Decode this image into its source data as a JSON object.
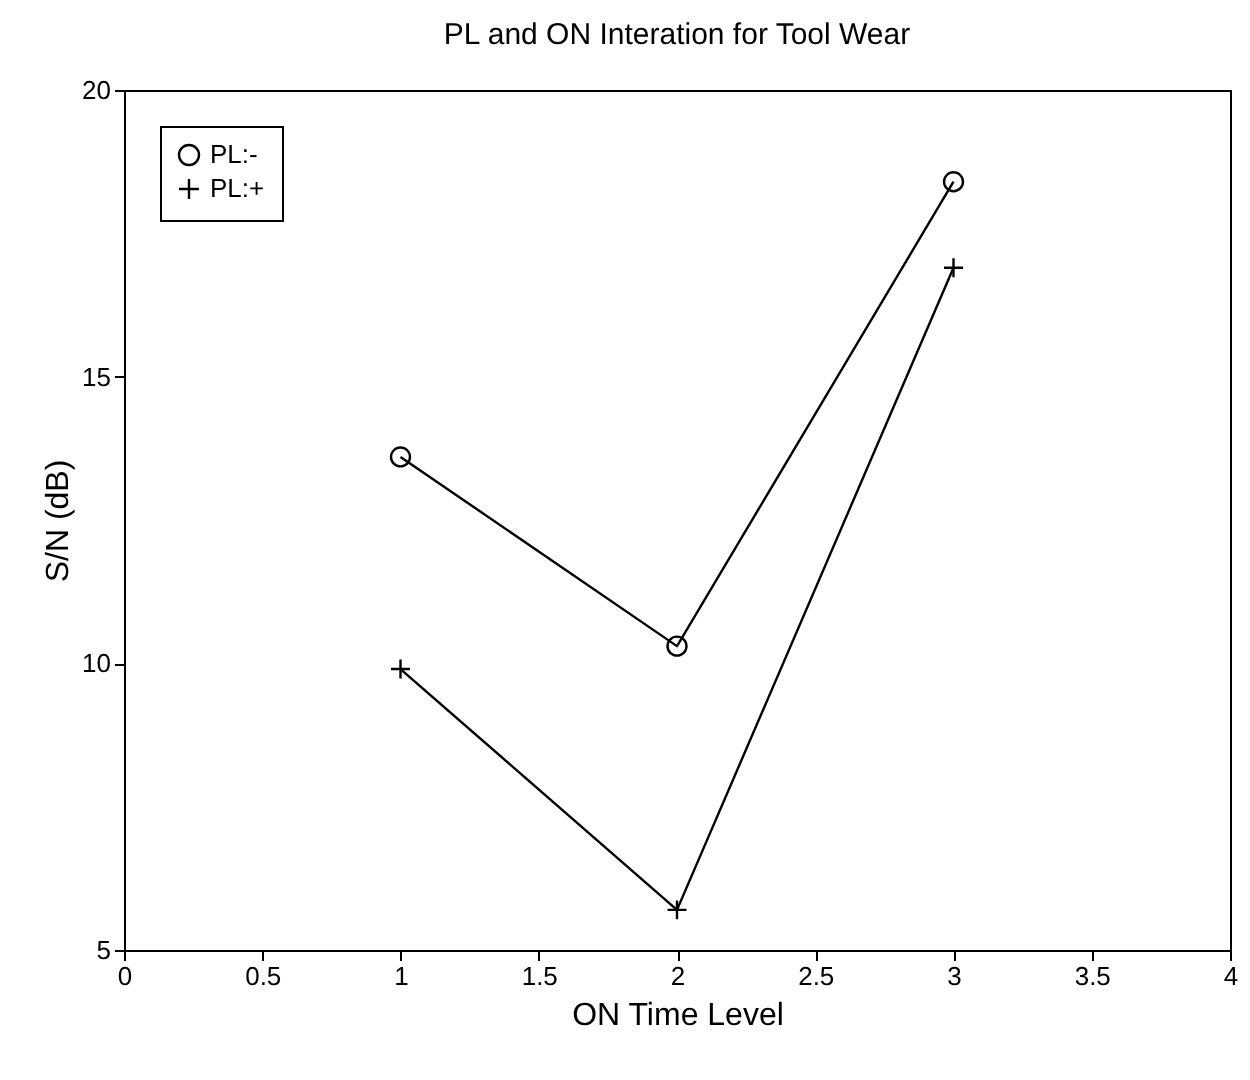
{
  "chart_data": {
    "type": "line",
    "title": "PL and ON Interation for Tool Wear",
    "xlabel": "ON Time Level",
    "ylabel": "S/N (dB)",
    "x": [
      1,
      2,
      3
    ],
    "series": [
      {
        "name": "PL:-",
        "color": "#000000",
        "marker": "circle",
        "values": [
          13.6,
          10.3,
          18.4
        ]
      },
      {
        "name": "PL:+",
        "color": "#000000",
        "marker": "cross",
        "values": [
          9.9,
          5.7,
          16.9
        ]
      }
    ],
    "xlim": [
      0,
      4
    ],
    "xticks": [
      0,
      0.5,
      1,
      1.5,
      2,
      2.5,
      3,
      3.5,
      4
    ],
    "ylim": [
      5,
      20
    ],
    "yticks": [
      5,
      10,
      15,
      20
    ],
    "grid": false,
    "legend": "top left",
    "line_style": "solid"
  }
}
